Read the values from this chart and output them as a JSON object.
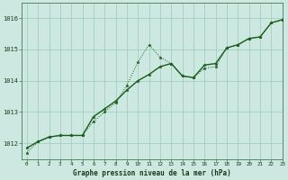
{
  "title": "Graphe pression niveau de la mer (hPa)",
  "bg_color": "#cce8e0",
  "grid_color": "#99ccbb",
  "line_color": "#1a5c1a",
  "xlim": [
    -0.5,
    23
  ],
  "ylim": [
    1011.5,
    1016.5
  ],
  "yticks": [
    1012,
    1013,
    1014,
    1015,
    1016
  ],
  "xticks": [
    0,
    1,
    2,
    3,
    4,
    5,
    6,
    7,
    8,
    9,
    10,
    11,
    12,
    13,
    14,
    15,
    16,
    17,
    18,
    19,
    20,
    21,
    22,
    23
  ],
  "series1_x": [
    0,
    1,
    2,
    3,
    4,
    5,
    6,
    7,
    8,
    9,
    10,
    11,
    12,
    13,
    14,
    15,
    16,
    17,
    18,
    19,
    20,
    21,
    22,
    23
  ],
  "series1_y": [
    1011.7,
    1012.05,
    1012.2,
    1012.25,
    1012.25,
    1012.25,
    1012.7,
    1013.0,
    1013.3,
    1013.85,
    1014.6,
    1015.15,
    1014.75,
    1014.55,
    1014.15,
    1014.1,
    1014.4,
    1014.45,
    1015.05,
    1015.15,
    1015.35,
    1015.4,
    1015.85,
    1015.95
  ],
  "series2_x": [
    0,
    1,
    2,
    3,
    4,
    5,
    6,
    7,
    8,
    9,
    10,
    11,
    12,
    13,
    14,
    15,
    16,
    17,
    18,
    19,
    20,
    21,
    22,
    23
  ],
  "series2_y": [
    1011.85,
    1012.05,
    1012.2,
    1012.25,
    1012.25,
    1012.25,
    1012.85,
    1013.1,
    1013.35,
    1013.7,
    1014.0,
    1014.2,
    1014.45,
    1014.55,
    1014.15,
    1014.1,
    1014.5,
    1014.55,
    1015.05,
    1015.15,
    1015.35,
    1015.4,
    1015.85,
    1015.95
  ]
}
